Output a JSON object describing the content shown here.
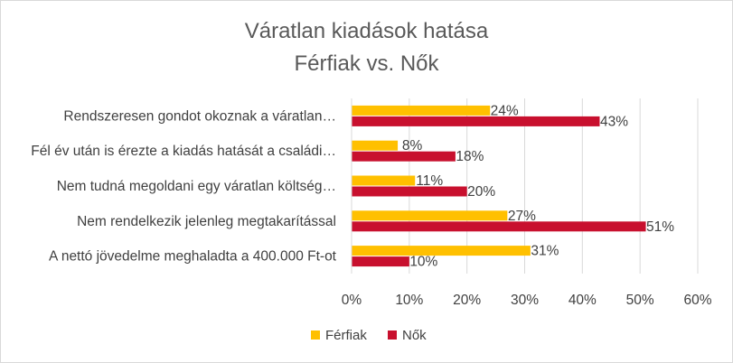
{
  "chart_data": {
    "type": "bar",
    "orientation": "horizontal",
    "title": "Váratlan kiadások hatása",
    "subtitle": "Férfiak vs. Nők",
    "categories": [
      "Rendszeresen gondot okoznak a váratlan…",
      "Fél év után is érezte a kiadás hatását a családi…",
      "Nem tudná megoldani egy váratlan költség…",
      "Nem rendelkezik jelenleg megtakarítással",
      "A nettó jövedelme meghaladta a 400.000 Ft-ot"
    ],
    "series": [
      {
        "name": "Férfiak",
        "color": "#FFC000",
        "values": [
          24,
          8,
          11,
          27,
          31
        ],
        "labels": [
          "24%",
          "8%",
          "11%",
          "27%",
          "31%"
        ]
      },
      {
        "name": "Nők",
        "color": "#C8102E",
        "values": [
          43,
          18,
          20,
          51,
          10
        ],
        "labels": [
          "43%",
          "18%",
          "20%",
          "51%",
          "10%"
        ]
      }
    ],
    "xlim": [
      0,
      60
    ],
    "xticks": [
      0,
      10,
      20,
      30,
      40,
      50,
      60
    ],
    "xtick_labels": [
      "0%",
      "10%",
      "20%",
      "30%",
      "40%",
      "50%",
      "60%"
    ],
    "grid": "vertical",
    "legend": "bottom"
  }
}
